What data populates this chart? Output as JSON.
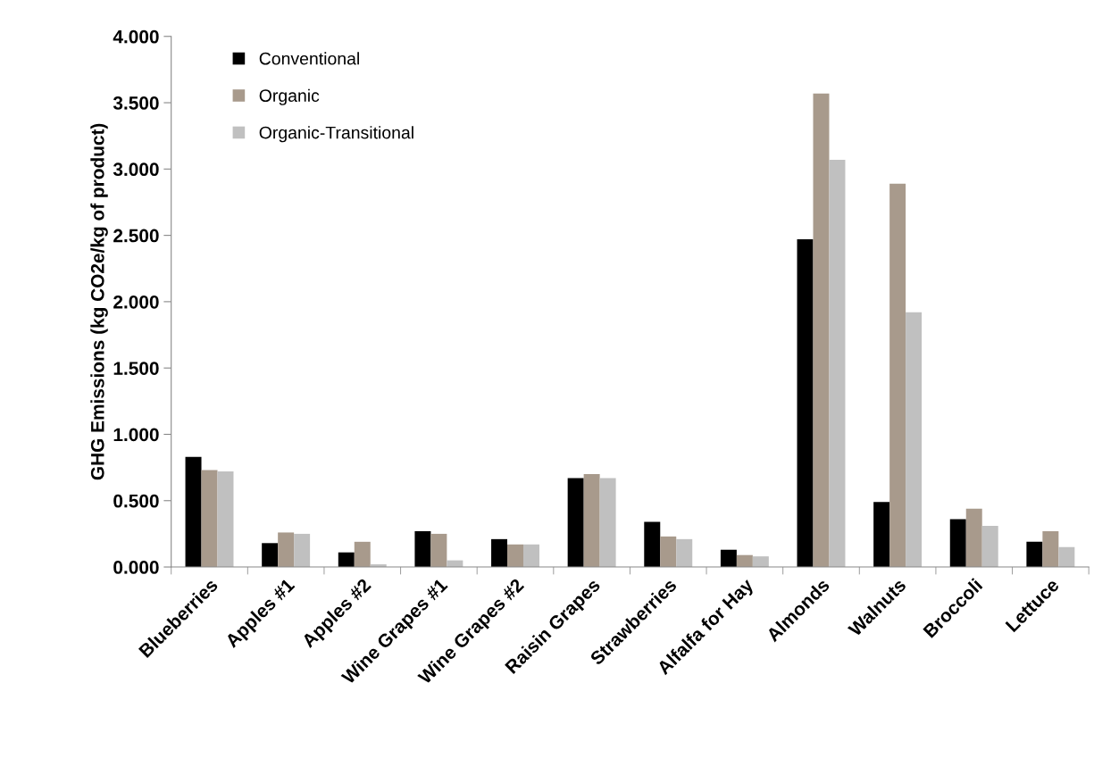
{
  "chart_data": {
    "type": "bar",
    "ylabel": "GHG Emissions (kg CO2e/kg of product)",
    "categories": [
      "Blueberries",
      "Apples #1",
      "Apples #2",
      "Wine Grapes #1",
      "Wine Grapes #2",
      "Raisin Grapes",
      "Strawberries",
      "Alfalfa for Hay",
      "Almonds",
      "Walnuts",
      "Broccoli",
      "Lettuce"
    ],
    "series": [
      {
        "name": "Conventional",
        "color": "#000000",
        "values": [
          0.83,
          0.18,
          0.11,
          0.27,
          0.21,
          0.67,
          0.34,
          0.13,
          2.47,
          0.49,
          0.36,
          0.19
        ]
      },
      {
        "name": "Organic",
        "color": "#a89a8c",
        "values": [
          0.73,
          0.26,
          0.19,
          0.25,
          0.17,
          0.7,
          0.23,
          0.09,
          3.57,
          2.89,
          0.44,
          0.27
        ]
      },
      {
        "name": "Organic-Transitional",
        "color": "#c0c0c0",
        "values": [
          0.72,
          0.25,
          0.02,
          0.05,
          0.17,
          0.67,
          0.21,
          0.08,
          3.07,
          1.92,
          0.31,
          0.15
        ]
      }
    ],
    "ylim": [
      0,
      4
    ],
    "yticks": [
      {
        "value": 0,
        "label": "0.000"
      },
      {
        "value": 0.5,
        "label": "0.500"
      },
      {
        "value": 1,
        "label": "1.000"
      },
      {
        "value": 1.5,
        "label": "1.500"
      },
      {
        "value": 2,
        "label": "2.000"
      },
      {
        "value": 2.5,
        "label": "2.500"
      },
      {
        "value": 3,
        "label": "3.000"
      },
      {
        "value": 3.5,
        "label": "3.500"
      },
      {
        "value": 4,
        "label": "4.000"
      }
    ],
    "grid": false,
    "legend": "top left"
  }
}
